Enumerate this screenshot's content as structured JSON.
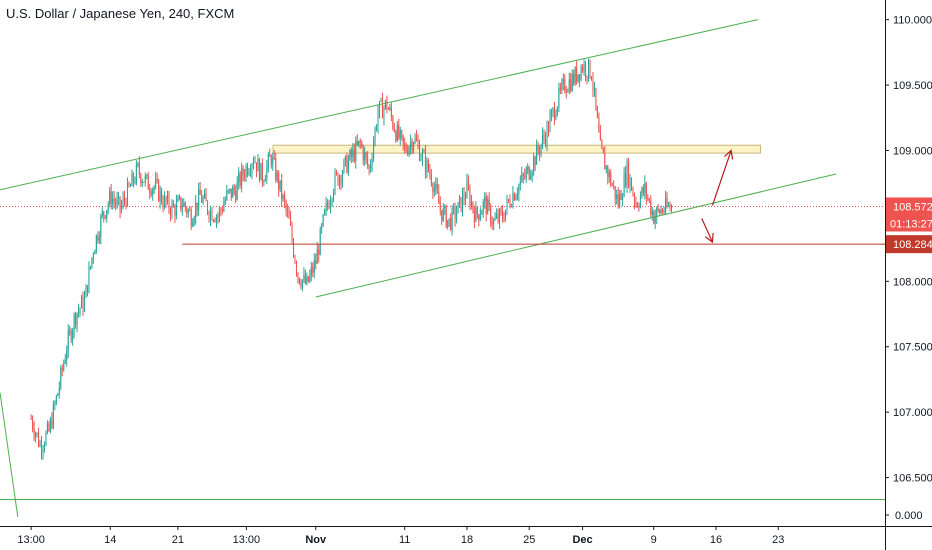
{
  "title": "U.S. Dollar / Japanese Yen, 240, FXCM",
  "colors": {
    "up": "#26a69a",
    "down": "#ef5350",
    "trendline": "#4caf50",
    "support": "#c0392b",
    "arrow": "#b71c1c",
    "zone_fill": "#fdf3c8",
    "zone_stroke": "#c8b77a",
    "price_line": "#ef5350",
    "axis_line": "#131722"
  },
  "chart_data": {
    "type": "candlestick",
    "symbol": "U.S. Dollar / Japanese Yen",
    "interval": "240",
    "source": "FXCM",
    "y_axis": {
      "ticks": [
        106.5,
        107.0,
        107.5,
        108.0,
        108.5,
        109.0,
        109.5,
        110.0
      ],
      "tick_labels": [
        "106.500",
        "107.000",
        "107.500",
        "108.000",
        "108.500",
        "109.000",
        "109.500",
        "110.000"
      ],
      "zero_label": "0.000",
      "range": [
        106.13,
        110.15
      ]
    },
    "x_axis": {
      "labels": [
        {
          "label": "13:00",
          "day": 0,
          "bold": false
        },
        {
          "label": "14",
          "day": 8.9,
          "bold": false
        },
        {
          "label": "21",
          "day": 16.5,
          "bold": false
        },
        {
          "label": "13:00",
          "day": 24.2,
          "bold": false
        },
        {
          "label": "Nov",
          "day": 32,
          "bold": true
        },
        {
          "label": "11",
          "day": 42,
          "bold": false
        },
        {
          "label": "18",
          "day": 49,
          "bold": false
        },
        {
          "label": "25",
          "day": 56,
          "bold": false
        },
        {
          "label": "Dec",
          "day": 62,
          "bold": true
        },
        {
          "label": "9",
          "day": 70,
          "bold": false
        },
        {
          "label": "16",
          "day": 77,
          "bold": false
        },
        {
          "label": "23",
          "day": 84,
          "bold": false
        }
      ],
      "range": [
        -3.5,
        96.0
      ]
    },
    "price_path": [
      [
        0,
        106.95
      ],
      [
        1,
        106.75
      ],
      [
        2,
        106.85
      ],
      [
        3,
        107.15
      ],
      [
        4,
        107.5
      ],
      [
        5,
        107.75
      ],
      [
        6,
        107.85
      ],
      [
        7,
        108.25
      ],
      [
        8,
        108.5
      ],
      [
        9,
        108.65
      ],
      [
        10,
        108.55
      ],
      [
        11,
        108.7
      ],
      [
        12,
        108.85
      ],
      [
        13,
        108.75
      ],
      [
        14,
        108.72
      ],
      [
        15,
        108.6
      ],
      [
        16,
        108.55
      ],
      [
        17,
        108.6
      ],
      [
        18,
        108.5
      ],
      [
        19,
        108.65
      ],
      [
        20,
        108.55
      ],
      [
        21,
        108.5
      ],
      [
        22,
        108.65
      ],
      [
        23,
        108.7
      ],
      [
        24,
        108.85
      ],
      [
        25,
        108.95
      ],
      [
        26,
        108.8
      ],
      [
        27,
        108.95
      ],
      [
        28,
        108.7
      ],
      [
        29,
        108.45
      ],
      [
        30,
        108.05
      ],
      [
        31,
        107.97
      ],
      [
        32,
        108.15
      ],
      [
        33,
        108.5
      ],
      [
        34,
        108.75
      ],
      [
        35,
        108.85
      ],
      [
        36,
        108.95
      ],
      [
        37,
        109.05
      ],
      [
        38,
        108.85
      ],
      [
        39,
        109.3
      ],
      [
        40,
        109.35
      ],
      [
        41,
        109.15
      ],
      [
        42,
        109.0
      ],
      [
        43,
        109.1
      ],
      [
        44,
        108.95
      ],
      [
        45,
        108.8
      ],
      [
        46,
        108.55
      ],
      [
        47,
        108.45
      ],
      [
        48,
        108.55
      ],
      [
        49,
        108.7
      ],
      [
        50,
        108.5
      ],
      [
        51,
        108.6
      ],
      [
        52,
        108.45
      ],
      [
        53,
        108.5
      ],
      [
        54,
        108.65
      ],
      [
        55,
        108.75
      ],
      [
        56,
        108.85
      ],
      [
        57,
        109.0
      ],
      [
        58,
        109.15
      ],
      [
        59,
        109.35
      ],
      [
        60,
        109.5
      ],
      [
        61,
        109.55
      ],
      [
        62,
        109.65
      ],
      [
        63,
        109.6
      ],
      [
        64,
        109.0
      ],
      [
        65,
        108.8
      ],
      [
        66,
        108.6
      ],
      [
        67,
        108.85
      ],
      [
        68,
        108.6
      ],
      [
        69,
        108.7
      ],
      [
        70,
        108.5
      ],
      [
        71,
        108.55
      ],
      [
        72,
        108.57
      ]
    ],
    "last_price": 108.572,
    "last_price_label": "108.572",
    "countdown_label": "01:13:27",
    "support_price": 108.284,
    "support_label": "108.284",
    "drawings": {
      "channel_upper": [
        [
          -3.5,
          108.7
        ],
        [
          81.7,
          110.0
        ]
      ],
      "channel_lower": [
        [
          32.0,
          107.88
        ],
        [
          90.5,
          108.82
        ]
      ],
      "left_steep_line": [
        [
          -3.5,
          107.15
        ],
        [
          -1.5,
          106.2
        ]
      ],
      "support_line": [
        [
          17.0,
          108.284
        ],
        [
          96.0,
          108.284
        ]
      ],
      "resistance_zone": {
        "x": [
          27.2,
          82.0
        ],
        "y": [
          108.98,
          109.04
        ]
      },
      "arrow_up": {
        "from": [
          76.6,
          108.58
        ],
        "to": [
          78.7,
          109.0
        ]
      },
      "arrow_down": {
        "from": [
          75.4,
          108.48
        ],
        "to": [
          76.6,
          108.3
        ]
      }
    }
  }
}
